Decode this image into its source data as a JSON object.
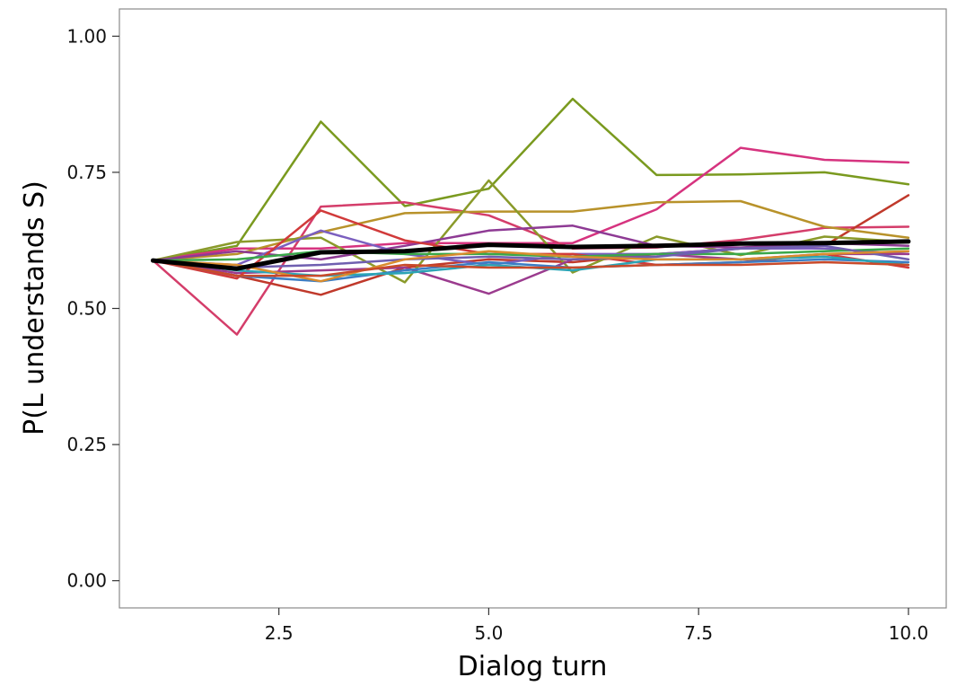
{
  "chart_data": {
    "type": "line",
    "title": "",
    "xlabel": "Dialog turn",
    "ylabel": "P(L understands S)",
    "xlim": [
      0.6,
      10.45
    ],
    "ylim": [
      -0.05,
      1.05
    ],
    "x_ticks": [
      2.5,
      5.0,
      7.5,
      10.0
    ],
    "x_tick_labels": [
      "2.5",
      "5.0",
      "7.5",
      "10.0"
    ],
    "y_ticks": [
      0.0,
      0.25,
      0.5,
      0.75,
      1.0
    ],
    "y_tick_labels": [
      "0.00",
      "0.25",
      "0.50",
      "0.75",
      "1.00"
    ],
    "grid": false,
    "legend": "none",
    "x": [
      1,
      2,
      3,
      4,
      5,
      6,
      7,
      8,
      9,
      10
    ],
    "series": [
      {
        "color": "#7a9a1f",
        "width": 2.5,
        "values": [
          0.588,
          0.615,
          0.843,
          0.688,
          0.72,
          0.885,
          0.745,
          0.746,
          0.75,
          0.728
        ]
      },
      {
        "color": "#d6337f",
        "width": 2.5,
        "values": [
          0.588,
          0.61,
          0.61,
          0.62,
          0.62,
          0.62,
          0.682,
          0.795,
          0.773,
          0.768
        ]
      },
      {
        "color": "#d43d6a",
        "width": 2.5,
        "values": [
          0.588,
          0.452,
          0.687,
          0.695,
          0.671,
          0.61,
          0.612,
          0.626,
          0.648,
          0.65
        ]
      },
      {
        "color": "#c0392b",
        "width": 2.5,
        "values": [
          0.588,
          0.56,
          0.525,
          0.575,
          0.59,
          0.585,
          0.6,
          0.61,
          0.615,
          0.708
        ]
      },
      {
        "color": "#b8922a",
        "width": 2.5,
        "values": [
          0.588,
          0.6,
          0.64,
          0.675,
          0.678,
          0.678,
          0.695,
          0.697,
          0.65,
          0.63
        ]
      },
      {
        "color": "#8a9a2a",
        "width": 2.5,
        "values": [
          0.588,
          0.622,
          0.63,
          0.548,
          0.735,
          0.566,
          0.632,
          0.598,
          0.632,
          0.622
        ]
      },
      {
        "color": "#8e3a94",
        "width": 2.5,
        "values": [
          0.588,
          0.605,
          0.59,
          0.615,
          0.643,
          0.652,
          0.615,
          0.612,
          0.62,
          0.615
        ]
      },
      {
        "color": "#7b5fbf",
        "width": 2.5,
        "values": [
          0.588,
          0.58,
          0.643,
          0.6,
          0.58,
          0.6,
          0.6,
          0.61,
          0.61,
          0.6
        ]
      },
      {
        "color": "#9b3b8e",
        "width": 2.5,
        "values": [
          0.588,
          0.565,
          0.57,
          0.575,
          0.527,
          0.59,
          0.6,
          0.59,
          0.6,
          0.6
        ]
      },
      {
        "color": "#d13a3a",
        "width": 2.5,
        "values": [
          0.588,
          0.555,
          0.68,
          0.625,
          0.6,
          0.6,
          0.58,
          0.585,
          0.6,
          0.575
        ]
      },
      {
        "color": "#3b7dc4",
        "width": 2.5,
        "values": [
          0.588,
          0.56,
          0.55,
          0.57,
          0.585,
          0.575,
          0.58,
          0.585,
          0.59,
          0.585
        ]
      },
      {
        "color": "#2ba4b5",
        "width": 2.5,
        "values": [
          0.588,
          0.57,
          0.56,
          0.565,
          0.58,
          0.57,
          0.59,
          0.59,
          0.595,
          0.58
        ]
      },
      {
        "color": "#3aa84a",
        "width": 2.5,
        "values": [
          0.588,
          0.59,
          0.605,
          0.6,
          0.6,
          0.595,
          0.6,
          0.6,
          0.605,
          0.61
        ]
      },
      {
        "color": "#6f5fb0",
        "width": 2.5,
        "values": [
          0.588,
          0.575,
          0.58,
          0.59,
          0.595,
          0.59,
          0.595,
          0.61,
          0.615,
          0.59
        ]
      },
      {
        "color": "#d98c2e",
        "width": 2.5,
        "values": [
          0.588,
          0.58,
          0.55,
          0.59,
          0.605,
          0.595,
          0.59,
          0.59,
          0.6,
          0.605
        ]
      },
      {
        "color": "#c94a2a",
        "width": 2.5,
        "values": [
          0.588,
          0.56,
          0.56,
          0.58,
          0.575,
          0.575,
          0.58,
          0.58,
          0.585,
          0.58
        ]
      },
      {
        "color": "#000000",
        "width": 5,
        "values": [
          0.588,
          0.573,
          0.603,
          0.605,
          0.617,
          0.613,
          0.615,
          0.619,
          0.62,
          0.623
        ]
      }
    ]
  }
}
